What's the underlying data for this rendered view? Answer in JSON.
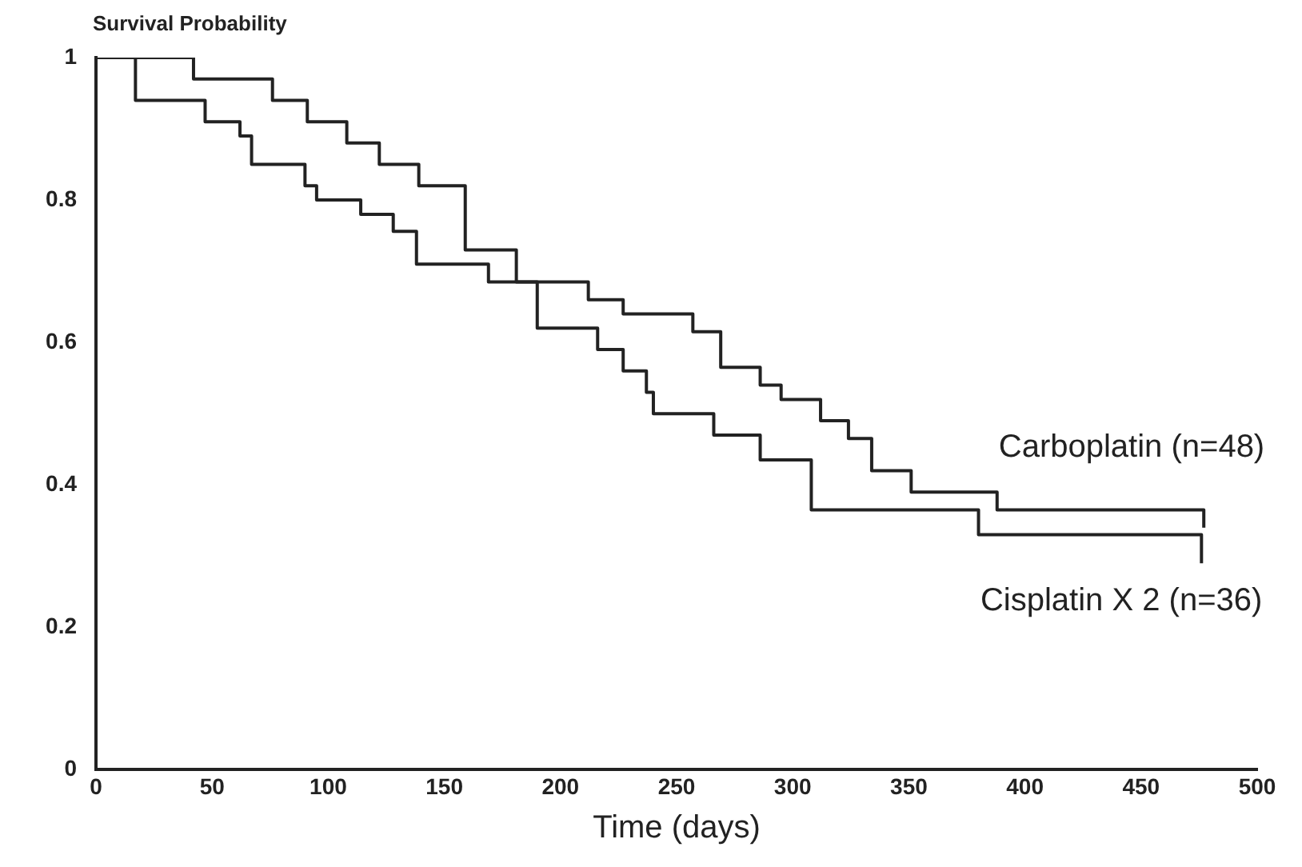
{
  "chart_data": {
    "type": "step",
    "ylabel": "Survival Probability",
    "xlabel": "Time (days)",
    "xlim": [
      0,
      500
    ],
    "xticks": [
      0,
      50,
      100,
      150,
      200,
      250,
      300,
      350,
      400,
      450,
      500
    ],
    "ylim": [
      0,
      1
    ],
    "yticks": [
      0,
      0.2,
      0.4,
      0.6,
      0.8,
      1
    ],
    "grid": false,
    "legend": false,
    "marker": "none",
    "line_style": "solid",
    "series": [
      {
        "name": "Carboplatin (n=48)",
        "color": "#222222",
        "x": [
          0,
          42,
          76,
          91,
          108,
          122,
          139,
          159,
          181,
          212,
          227,
          257,
          269,
          286,
          295,
          312,
          324,
          334,
          351,
          388,
          477,
          477
        ],
        "values": [
          1,
          0.97,
          0.94,
          0.91,
          0.88,
          0.85,
          0.82,
          0.73,
          0.685,
          0.66,
          0.64,
          0.615,
          0.565,
          0.54,
          0.52,
          0.49,
          0.465,
          0.42,
          0.39,
          0.365,
          0.365,
          0.34
        ]
      },
      {
        "name": "Cisplatin X 2 (n=36)",
        "color": "#222222",
        "x": [
          0,
          17,
          47,
          62,
          67,
          90,
          95,
          114,
          128,
          138,
          169,
          190,
          216,
          227,
          237,
          240,
          266,
          286,
          308,
          380,
          476,
          476
        ],
        "values": [
          1,
          0.94,
          0.91,
          0.89,
          0.85,
          0.82,
          0.8,
          0.78,
          0.756,
          0.71,
          0.685,
          0.62,
          0.59,
          0.56,
          0.53,
          0.5,
          0.47,
          0.435,
          0.365,
          0.33,
          0.33,
          0.29
        ]
      }
    ]
  }
}
